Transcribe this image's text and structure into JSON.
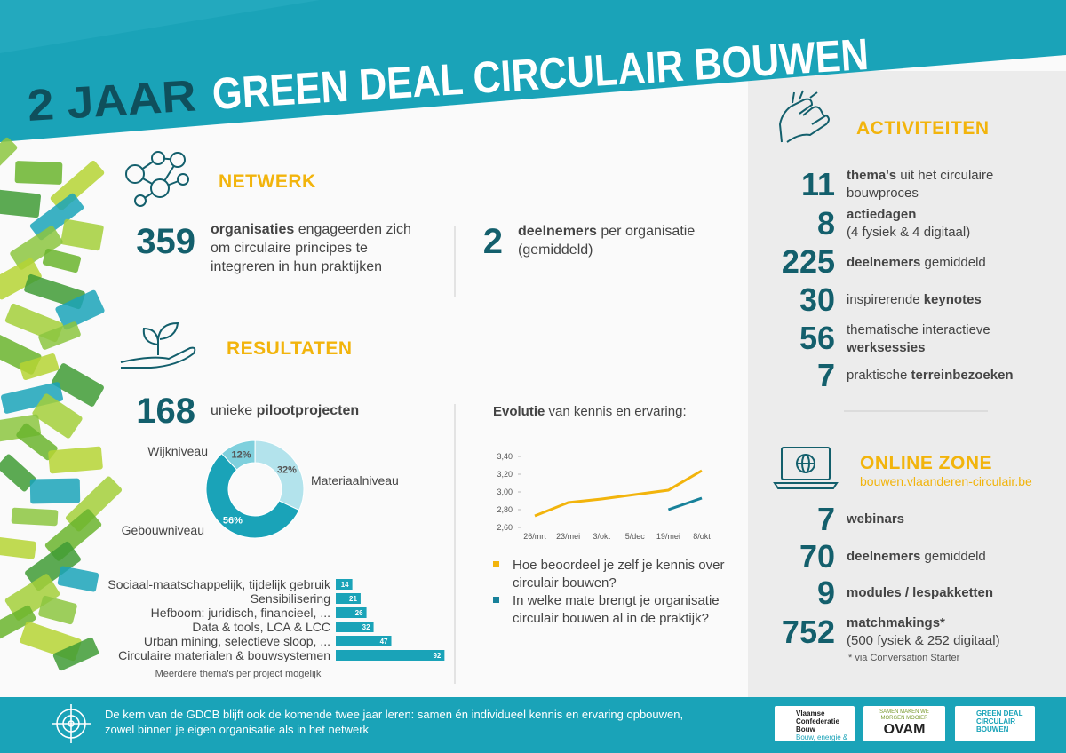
{
  "header": {
    "title_dark": "2 JAAR",
    "title_light": "GREEN DEAL CIRCULAIR BOUWEN"
  },
  "netwerk": {
    "heading": "NETWERK",
    "stats": [
      {
        "number": 359,
        "parts": [
          {
            "t": "organisaties",
            "b": true
          },
          {
            "t": " engageerden zich om circulaire principes te integreren in hun praktijken"
          }
        ]
      },
      {
        "number": 2,
        "parts": [
          {
            "t": "deelnemers",
            "b": true
          },
          {
            "t": " per organisatie (gemiddeld)"
          }
        ]
      }
    ]
  },
  "resultaten": {
    "heading": "RESULTATEN",
    "stat": {
      "number": 168,
      "parts": [
        {
          "t": "unieke "
        },
        {
          "t": "pilootprojecten",
          "b": true
        }
      ]
    }
  },
  "niveau_chart": {
    "type": "pie",
    "categories": [
      "Wijkniveau",
      "Materiaalniveau",
      "Gebouwniveau"
    ],
    "values": [
      12,
      32,
      56
    ],
    "value_labels": [
      "12%",
      "32%",
      "56%"
    ],
    "colors": [
      "#7fd0dd",
      "#b3e3ec",
      "#1aa3b8"
    ]
  },
  "themas_chart": {
    "type": "bar",
    "orientation": "horizontal",
    "categories": [
      "Sociaal-maatschappelijk, tijdelijk gebruik",
      "Sensibilisering",
      "Hefboom: juridisch, financieel, ...",
      "Data & tools, LCA & LCC",
      "Urban mining, selectieve sloop, ...",
      "Circulaire materialen & bouwsystemen"
    ],
    "values": [
      14,
      21,
      26,
      32,
      47,
      92
    ],
    "color": "#1aa3b8",
    "note": "Meerdere thema's per project mogelijk"
  },
  "evolutie_chart": {
    "type": "line",
    "title_parts": [
      {
        "t": "Evolutie",
        "b": true
      },
      {
        "t": " van kennis en ervaring:"
      }
    ],
    "categories": [
      "26/mrt",
      "23/mei",
      "3/okt",
      "5/dec",
      "19/mei",
      "8/okt"
    ],
    "series": [
      {
        "name": "Hoe beoordeel je zelf je kennis over circulair bouwen?",
        "color": "#f2b40c",
        "values": [
          2.73,
          2.88,
          2.92,
          2.97,
          3.02,
          3.24
        ]
      },
      {
        "name": "In welke mate brengt je organisatie circulair bouwen al in de praktijk?",
        "color": "#17819a",
        "values": [
          null,
          null,
          null,
          null,
          2.8,
          2.93
        ]
      }
    ],
    "ylim": [
      2.6,
      3.4
    ],
    "yticks": [
      {
        "value": 2.6,
        "label": "2,60"
      },
      {
        "value": 2.8,
        "label": "2,80"
      },
      {
        "value": 3.0,
        "label": "3,00"
      },
      {
        "value": 3.2,
        "label": "3,20"
      },
      {
        "value": 3.4,
        "label": "3,40"
      }
    ]
  },
  "activiteiten": {
    "heading": "ACTIVITEITEN",
    "items": [
      {
        "number": 11,
        "parts": [
          {
            "t": "thema's",
            "b": true
          },
          {
            "t": " uit het circulaire bouwproces"
          }
        ]
      },
      {
        "number": 8,
        "parts": [
          {
            "t": "actiedagen",
            "b": true
          }
        ],
        "sub": "(4 fysiek & 4 digitaal)"
      },
      {
        "number": 225,
        "parts": [
          {
            "t": "deelnemers",
            "b": true
          },
          {
            "t": " gemiddeld"
          }
        ]
      },
      {
        "number": 30,
        "parts": [
          {
            "t": "inspirerende "
          },
          {
            "t": "keynotes",
            "b": true
          }
        ]
      },
      {
        "number": 56,
        "parts": [
          {
            "t": "thematische interactieve "
          },
          {
            "t": "werksessies",
            "b": true
          }
        ]
      },
      {
        "number": 7,
        "parts": [
          {
            "t": "praktische "
          },
          {
            "t": "terreinbezoeken",
            "b": true
          }
        ]
      }
    ]
  },
  "online_zone": {
    "heading": "ONLINE ZONE",
    "link": "bouwen.vlaanderen-circulair.be",
    "items": [
      {
        "number": 7,
        "parts": [
          {
            "t": "webinars",
            "b": true
          }
        ]
      },
      {
        "number": 70,
        "parts": [
          {
            "t": "deelnemers",
            "b": true
          },
          {
            "t": " gemiddeld"
          }
        ]
      },
      {
        "number": 9,
        "parts": [
          {
            "t": "modules / lespakketten",
            "b": true
          }
        ]
      },
      {
        "number": 752,
        "parts": [
          {
            "t": "matchmakings*",
            "b": true
          }
        ],
        "sub": "(500 fysiek & 252 digitaal)"
      }
    ],
    "footnote": "* via Conversation Starter"
  },
  "footer": {
    "text": "De kern van de GDCB blijft ook de komende twee jaar leren: samen én individueel kennis en ervaring opbouwen, zowel binnen je eigen organisatie als in het netwerk",
    "logos": [
      {
        "name": "Vlaamse Confederatie Bouw",
        "tagline": "Bouw, energie & milieu"
      },
      {
        "tagline": "SAMEN MAKEN WE MORGEN MOOIER",
        "name": "OVAM"
      },
      {
        "name": "GREEN DEAL CIRCULAIR BOUWEN"
      }
    ]
  }
}
